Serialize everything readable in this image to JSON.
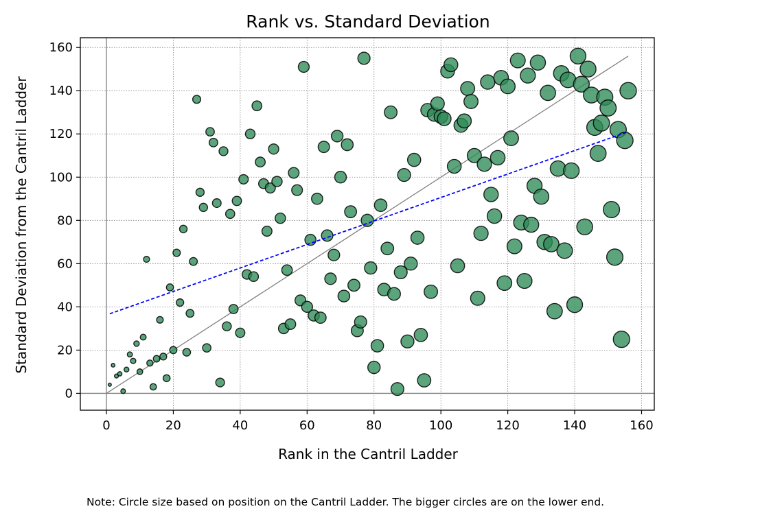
{
  "note": "Note: Circle size based on position on the Cantril Ladder. The bigger circles are on the lower end.",
  "chart_data": {
    "type": "scatter",
    "title": "Rank vs. Standard Deviation",
    "xlabel": "Rank in the Cantril Ladder",
    "ylabel": "Standard Deviation from the Cantril Ladder",
    "xlim": [
      -7.8,
      163.8
    ],
    "ylim": [
      -7.8,
      164.5
    ],
    "xticks": [
      0,
      20,
      40,
      60,
      80,
      100,
      120,
      140,
      160
    ],
    "yticks": [
      0,
      20,
      40,
      60,
      80,
      100,
      120,
      140,
      160
    ],
    "grid": true,
    "marker_color": "#2e8b57",
    "marker_edge_color": "#000000",
    "identity_line": {
      "x": [
        0,
        156
      ],
      "y": [
        0,
        156
      ],
      "color": "#808080"
    },
    "trend_line": {
      "x": [
        1,
        156
      ],
      "y": [
        36.8,
        121
      ],
      "color": "#0000ff",
      "style": "dashed"
    },
    "points": [
      [
        1,
        4
      ],
      [
        2,
        13
      ],
      [
        3,
        8
      ],
      [
        4,
        9
      ],
      [
        5,
        1
      ],
      [
        6,
        11
      ],
      [
        7,
        18
      ],
      [
        8,
        15
      ],
      [
        9,
        23
      ],
      [
        10,
        10
      ],
      [
        11,
        26
      ],
      [
        12,
        62
      ],
      [
        13,
        14
      ],
      [
        14,
        3
      ],
      [
        15,
        16
      ],
      [
        16,
        34
      ],
      [
        17,
        17
      ],
      [
        18,
        7
      ],
      [
        19,
        49
      ],
      [
        20,
        20
      ],
      [
        21,
        65
      ],
      [
        22,
        42
      ],
      [
        23,
        76
      ],
      [
        24,
        19
      ],
      [
        25,
        37
      ],
      [
        26,
        61
      ],
      [
        27,
        136
      ],
      [
        28,
        93
      ],
      [
        29,
        86
      ],
      [
        30,
        21
      ],
      [
        31,
        121
      ],
      [
        32,
        116
      ],
      [
        33,
        88
      ],
      [
        34,
        5
      ],
      [
        35,
        112
      ],
      [
        36,
        31
      ],
      [
        37,
        83
      ],
      [
        38,
        39
      ],
      [
        39,
        89
      ],
      [
        40,
        28
      ],
      [
        41,
        99
      ],
      [
        42,
        55
      ],
      [
        43,
        120
      ],
      [
        44,
        54
      ],
      [
        45,
        133
      ],
      [
        46,
        107
      ],
      [
        47,
        97
      ],
      [
        48,
        75
      ],
      [
        49,
        95
      ],
      [
        50,
        113
      ],
      [
        51,
        98
      ],
      [
        52,
        81
      ],
      [
        53,
        30
      ],
      [
        54,
        57
      ],
      [
        55,
        32
      ],
      [
        56,
        102
      ],
      [
        57,
        94
      ],
      [
        58,
        43
      ],
      [
        59,
        151
      ],
      [
        60,
        40
      ],
      [
        61,
        71
      ],
      [
        62,
        36
      ],
      [
        63,
        90
      ],
      [
        64,
        35
      ],
      [
        65,
        114
      ],
      [
        66,
        73
      ],
      [
        67,
        53
      ],
      [
        68,
        64
      ],
      [
        69,
        119
      ],
      [
        70,
        100
      ],
      [
        71,
        45
      ],
      [
        72,
        115
      ],
      [
        73,
        84
      ],
      [
        74,
        50
      ],
      [
        75,
        29
      ],
      [
        76,
        33
      ],
      [
        77,
        155
      ],
      [
        78,
        80
      ],
      [
        79,
        58
      ],
      [
        80,
        12
      ],
      [
        81,
        22
      ],
      [
        82,
        87
      ],
      [
        83,
        48
      ],
      [
        84,
        67
      ],
      [
        85,
        130
      ],
      [
        86,
        46
      ],
      [
        87,
        2
      ],
      [
        88,
        56
      ],
      [
        89,
        101
      ],
      [
        90,
        24
      ],
      [
        91,
        60
      ],
      [
        92,
        108
      ],
      [
        93,
        72
      ],
      [
        94,
        27
      ],
      [
        95,
        6
      ],
      [
        96,
        131
      ],
      [
        97,
        47
      ],
      [
        98,
        129
      ],
      [
        99,
        134
      ],
      [
        100,
        128
      ],
      [
        101,
        127
      ],
      [
        102,
        149
      ],
      [
        103,
        152
      ],
      [
        104,
        105
      ],
      [
        105,
        59
      ],
      [
        106,
        124
      ],
      [
        107,
        126
      ],
      [
        108,
        141
      ],
      [
        109,
        135
      ],
      [
        110,
        110
      ],
      [
        111,
        44
      ],
      [
        112,
        74
      ],
      [
        113,
        106
      ],
      [
        114,
        144
      ],
      [
        115,
        92
      ],
      [
        116,
        82
      ],
      [
        117,
        109
      ],
      [
        118,
        146
      ],
      [
        119,
        51
      ],
      [
        120,
        142
      ],
      [
        121,
        118
      ],
      [
        122,
        68
      ],
      [
        123,
        154
      ],
      [
        124,
        79
      ],
      [
        125,
        52
      ],
      [
        126,
        147
      ],
      [
        127,
        78
      ],
      [
        128,
        96
      ],
      [
        129,
        153
      ],
      [
        130,
        91
      ],
      [
        131,
        70
      ],
      [
        132,
        139
      ],
      [
        133,
        69
      ],
      [
        134,
        38
      ],
      [
        135,
        104
      ],
      [
        136,
        148
      ],
      [
        137,
        66
      ],
      [
        138,
        145
      ],
      [
        139,
        103
      ],
      [
        140,
        41
      ],
      [
        141,
        156
      ],
      [
        142,
        143
      ],
      [
        143,
        77
      ],
      [
        144,
        150
      ],
      [
        145,
        138
      ],
      [
        146,
        123
      ],
      [
        147,
        111
      ],
      [
        148,
        125
      ],
      [
        149,
        137
      ],
      [
        150,
        132
      ],
      [
        151,
        85
      ],
      [
        152,
        63
      ],
      [
        153,
        122
      ],
      [
        154,
        25
      ],
      [
        155,
        117
      ],
      [
        156,
        140
      ]
    ]
  }
}
